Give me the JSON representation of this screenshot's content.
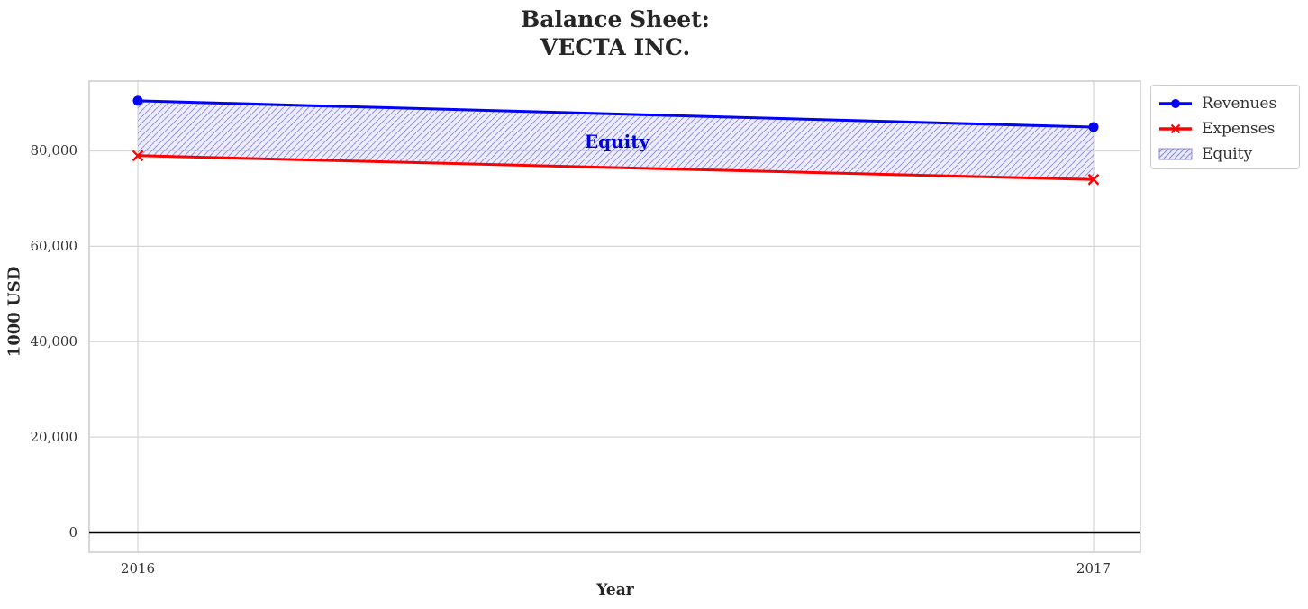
{
  "title": {
    "line1": "Balance Sheet:",
    "line2": "VECTA INC."
  },
  "axes": {
    "xlabel": "Year",
    "ylabel": "1000 USD"
  },
  "colors": {
    "revenues": "#0000ff",
    "expenses": "#ff0000",
    "equity_fill": "#ccccff",
    "equity_hatch": "#8888dd",
    "grid": "#d6d6d6",
    "plot_border": "#cccccc",
    "zero_line": "#000000",
    "equity_label_text": "#0000dd",
    "title_text": "#262626"
  },
  "chart_data": {
    "type": "line",
    "title": "Balance Sheet: VECTA INC.",
    "xlabel": "Year",
    "ylabel": "1000 USD",
    "x": [
      2016,
      2017
    ],
    "xtick_labels": [
      "2016",
      "2017"
    ],
    "yticks": [
      0,
      20000,
      40000,
      60000,
      80000
    ],
    "ytick_labels": [
      "0",
      "20,000",
      "40,000",
      "60,000",
      "80,000"
    ],
    "ylim": [
      -4200,
      94600
    ],
    "grid": true,
    "zero_line_at": 0,
    "series": [
      {
        "name": "Revenues",
        "color": "#0000ff",
        "marker": "circle",
        "values": [
          90500,
          85000
        ]
      },
      {
        "name": "Expenses",
        "color": "#ff0000",
        "marker": "x",
        "values": [
          79000,
          74000
        ]
      }
    ],
    "area": {
      "name": "Equity",
      "label": "Equity",
      "between": [
        "Revenues",
        "Expenses"
      ],
      "values": [
        11500,
        11000
      ],
      "fill": "#ccccff",
      "hatch": "/"
    },
    "legend": {
      "position": "upper right outside",
      "entries": [
        "Revenues",
        "Expenses",
        "Equity"
      ]
    }
  }
}
